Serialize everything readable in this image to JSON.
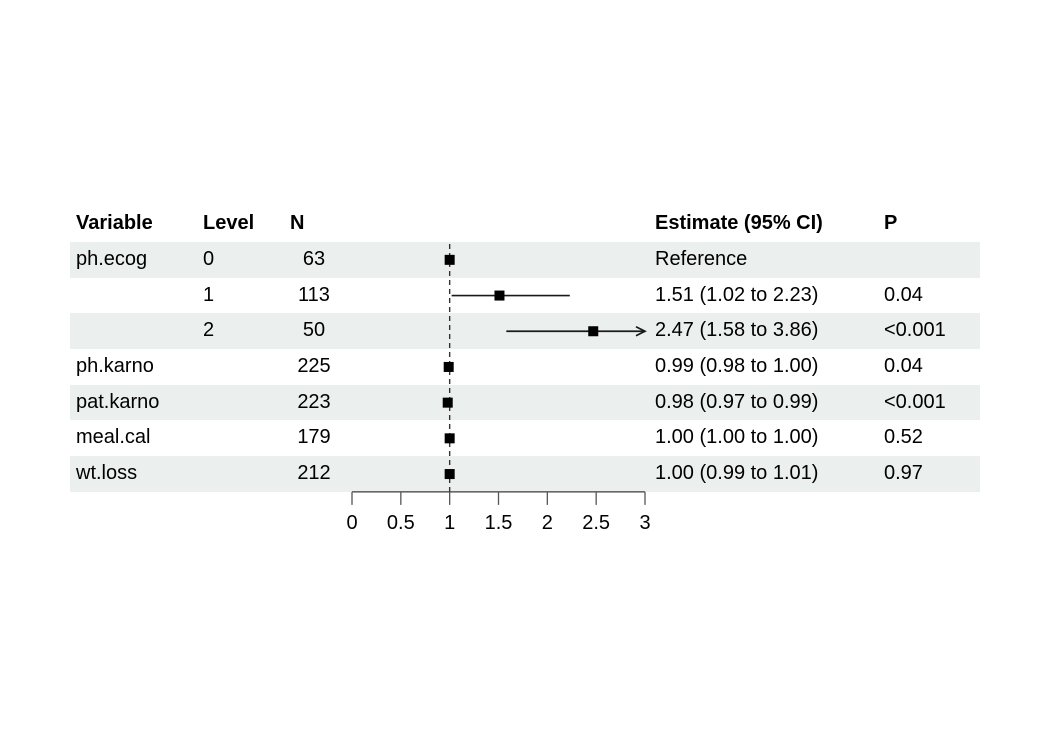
{
  "table": {
    "headers": {
      "variable": "Variable",
      "level": "Level",
      "n": "N",
      "estimate": "Estimate (95% CI)",
      "p": "P"
    },
    "rows": [
      {
        "variable": "ph.ecog",
        "level": "0",
        "n": "63",
        "estimate_label": "Reference",
        "p": ""
      },
      {
        "variable": "",
        "level": "1",
        "n": "113",
        "estimate_label": "1.51 (1.02 to 2.23)",
        "p": "0.04"
      },
      {
        "variable": "",
        "level": "2",
        "n": "50",
        "estimate_label": "2.47 (1.58 to 3.86)",
        "p": "<0.001"
      },
      {
        "variable": "ph.karno",
        "level": "",
        "n": "225",
        "estimate_label": "0.99 (0.98 to 1.00)",
        "p": "0.04"
      },
      {
        "variable": "pat.karno",
        "level": "",
        "n": "223",
        "estimate_label": "0.98 (0.97 to 0.99)",
        "p": "<0.001"
      },
      {
        "variable": "meal.cal",
        "level": "",
        "n": "179",
        "estimate_label": "1.00 (1.00 to 1.00)",
        "p": "0.52"
      },
      {
        "variable": "wt.loss",
        "level": "",
        "n": "212",
        "estimate_label": "1.00 (0.99 to 1.01)",
        "p": "0.97"
      }
    ]
  },
  "chart_data": {
    "type": "scatter",
    "subtype": "forest-plot",
    "title": "",
    "xlabel": "",
    "ylabel": "",
    "axis": {
      "min": 0,
      "max": 3,
      "ticks": [
        0,
        0.5,
        1,
        1.5,
        2,
        2.5,
        3
      ],
      "tick_labels": [
        "0",
        "0.5",
        "1",
        "1.5",
        "2",
        "2.5",
        "3"
      ],
      "reference_line": 1
    },
    "points": [
      {
        "row": 0,
        "label": "ph.ecog 0",
        "estimate": 1.0,
        "ci_low": null,
        "ci_high": null,
        "reference": true
      },
      {
        "row": 1,
        "label": "ph.ecog 1",
        "estimate": 1.51,
        "ci_low": 1.02,
        "ci_high": 2.23
      },
      {
        "row": 2,
        "label": "ph.ecog 2",
        "estimate": 2.47,
        "ci_low": 1.58,
        "ci_high": 3.86
      },
      {
        "row": 3,
        "label": "ph.karno",
        "estimate": 0.99,
        "ci_low": 0.98,
        "ci_high": 1.0
      },
      {
        "row": 4,
        "label": "pat.karno",
        "estimate": 0.98,
        "ci_low": 0.97,
        "ci_high": 0.99
      },
      {
        "row": 5,
        "label": "meal.cal",
        "estimate": 1.0,
        "ci_low": 1.0,
        "ci_high": 1.0
      },
      {
        "row": 6,
        "label": "wt.loss",
        "estimate": 1.0,
        "ci_low": 0.99,
        "ci_high": 1.01
      }
    ],
    "legend": null,
    "grid": false
  },
  "colors": {
    "row_shading": "#EBEFEE",
    "text": "#000000",
    "marker": "#000000",
    "ci_line": "#1a1a1a",
    "reference_line": "#333333",
    "axis_line": "#3c3c3c",
    "tick": "#555555"
  }
}
